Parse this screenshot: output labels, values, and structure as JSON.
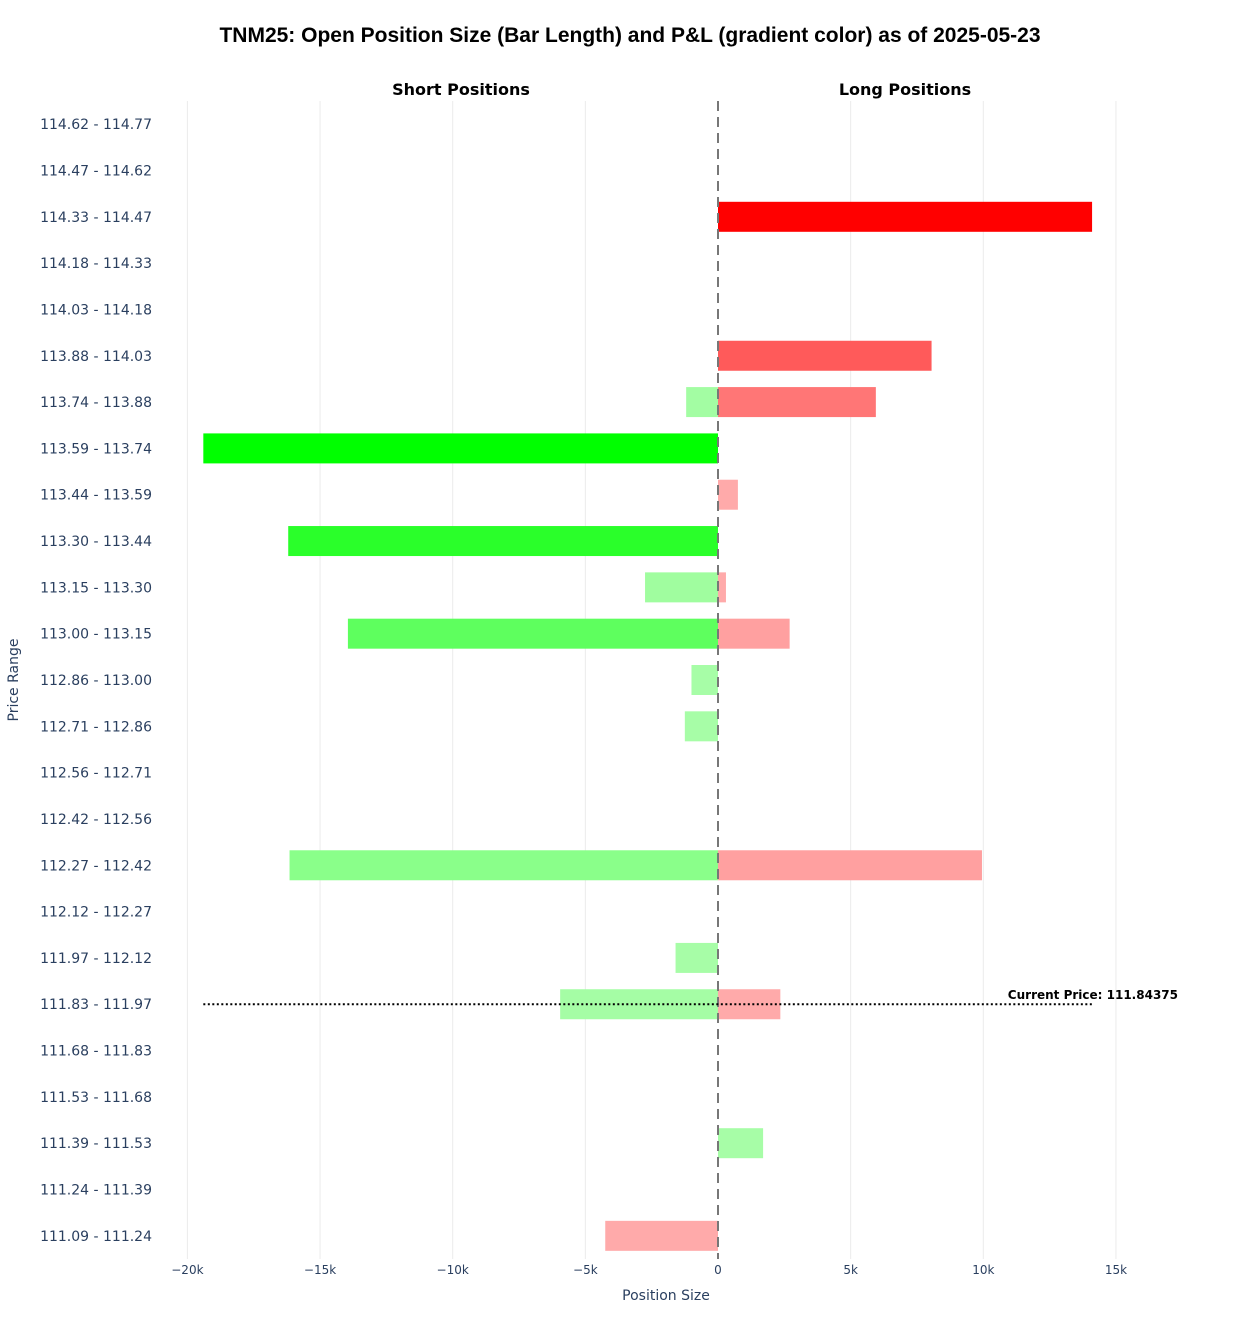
{
  "chart_data": {
    "type": "bar",
    "orientation": "horizontal-diverging",
    "title": "TNM25: Open Position Size (Bar Length) and P&L (gradient color) as of 2025-05-23",
    "subtitles": [
      "Short Positions",
      "Long Positions"
    ],
    "xlabel": "Position Size",
    "ylabel": "Price Range",
    "xlim": [
      -20500,
      17500
    ],
    "xticks": [
      {
        "value": -20000,
        "label": "−20k"
      },
      {
        "value": -15000,
        "label": "−15k"
      },
      {
        "value": -10000,
        "label": "−10k"
      },
      {
        "value": -5000,
        "label": "−5k"
      },
      {
        "value": 0,
        "label": "0"
      },
      {
        "value": 5000,
        "label": "5k"
      },
      {
        "value": 10000,
        "label": "10k"
      },
      {
        "value": 15000,
        "label": "15k"
      }
    ],
    "grid": true,
    "categories": [
      "114.62 - 114.77",
      "114.47 - 114.62",
      "114.33 - 114.47",
      "114.18 - 114.33",
      "114.03 - 114.18",
      "113.88 - 114.03",
      "113.74 - 113.88",
      "113.59 - 113.74",
      "113.44 - 113.59",
      "113.30 - 113.44",
      "113.15 - 113.30",
      "113.00 - 113.15",
      "112.86 - 113.00",
      "112.71 - 112.86",
      "112.56 - 112.71",
      "112.42 - 112.56",
      "112.27 - 112.42",
      "112.12 - 112.27",
      "111.97 - 112.12",
      "111.83 - 111.97",
      "111.68 - 111.83",
      "111.53 - 111.68",
      "111.39 - 111.53",
      "111.24 - 111.39",
      "111.09 - 111.24"
    ],
    "series": [
      {
        "role": "short",
        "values": [
          0,
          0,
          0,
          0,
          0,
          0,
          -1200,
          -19400,
          0,
          -16200,
          -2750,
          -13950,
          -1000,
          -1250,
          0,
          0,
          -16150,
          0,
          -1600,
          -5950,
          0,
          0,
          0,
          0,
          -4250
        ],
        "colors": [
          "",
          "",
          "",
          "",
          "",
          "",
          "#a3fda3",
          "#00ff00",
          "",
          "#2aff2a",
          "#a0fd9f",
          "#5eff5e",
          "#a7fda7",
          "#a7fda7",
          "",
          "",
          "#8aff8a",
          "",
          "#a7fda7",
          "#a5fda5",
          "",
          "",
          "",
          "",
          "#ffaaaa"
        ]
      },
      {
        "role": "long",
        "values": [
          0,
          0,
          14100,
          0,
          0,
          8050,
          5950,
          0,
          750,
          0,
          300,
          2700,
          0,
          0,
          0,
          0,
          9950,
          0,
          0,
          2350,
          0,
          0,
          1700,
          0,
          0
        ],
        "colors": [
          "",
          "",
          "#ff0000",
          "",
          "",
          "#ff5a5a",
          "#ff7676",
          "",
          "#ffaaaa",
          "",
          "#ffaaaa",
          "#ffa0a0",
          "",
          "",
          "",
          "",
          "#ffa0a0",
          "",
          "",
          "#ffaaaa",
          "",
          "",
          "#a7fda7",
          "",
          ""
        ]
      }
    ],
    "current_price": {
      "label": "Current Price: 111.84375",
      "category": "111.83 - 111.97",
      "x_range": [
        -19400,
        14100
      ]
    },
    "zero_line": "dashed"
  }
}
